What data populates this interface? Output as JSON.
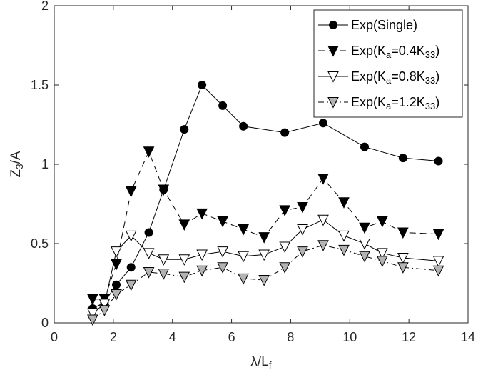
{
  "chart_data": {
    "type": "line",
    "title": "",
    "xlabel": {
      "base": "λ/L",
      "sub": "f"
    },
    "ylabel": {
      "parts": [
        {
          "t": "Z"
        },
        {
          "t": "3",
          "sub": true
        },
        {
          "t": "/A"
        }
      ]
    },
    "xlim": [
      0,
      14
    ],
    "ylim": [
      0,
      2
    ],
    "xticks": [
      0,
      2,
      4,
      6,
      8,
      10,
      12,
      14
    ],
    "xtick_labels": [
      "0",
      "2",
      "4",
      "6",
      "8",
      "10",
      "12",
      "14"
    ],
    "yticks": [
      0,
      0.5,
      1,
      1.5,
      2
    ],
    "ytick_labels": [
      "0",
      "0.5",
      "1",
      "1.5",
      "2"
    ],
    "grid": false,
    "legend_position": "top-right",
    "series": [
      {
        "name": "Exp(Single)",
        "legend_parts": [
          {
            "t": "Exp(Single)"
          }
        ],
        "marker": "circle",
        "fill": "#000000",
        "line": "solid",
        "x": [
          1.3,
          1.7,
          2.1,
          2.6,
          3.2,
          3.7,
          4.4,
          5.0,
          5.7,
          6.4,
          7.8,
          9.1,
          10.5,
          11.8,
          13.0
        ],
        "y": [
          0.09,
          0.13,
          0.24,
          0.35,
          0.57,
          0.84,
          1.22,
          1.5,
          1.37,
          1.24,
          1.2,
          1.26,
          1.11,
          1.04,
          1.02
        ]
      },
      {
        "name": "Exp(Ka=0.4K33)",
        "legend_parts": [
          {
            "t": "Exp(K"
          },
          {
            "t": "a",
            "sub": true
          },
          {
            "t": "=0.4K"
          },
          {
            "t": "33",
            "sub": true
          },
          {
            "t": ")"
          }
        ],
        "marker": "triangle-down",
        "fill": "#000000",
        "line": "dashed",
        "x": [
          1.3,
          1.7,
          2.1,
          2.6,
          3.2,
          3.7,
          4.4,
          5.0,
          5.7,
          6.4,
          7.1,
          7.8,
          8.4,
          9.1,
          9.8,
          10.5,
          11.1,
          11.8,
          13.0
        ],
        "y": [
          0.15,
          0.15,
          0.37,
          0.83,
          1.08,
          0.84,
          0.62,
          0.69,
          0.64,
          0.59,
          0.54,
          0.71,
          0.73,
          0.91,
          0.76,
          0.6,
          0.64,
          0.57,
          0.56
        ]
      },
      {
        "name": "Exp(Ka=0.8K33)",
        "legend_parts": [
          {
            "t": "Exp(K"
          },
          {
            "t": "a",
            "sub": true
          },
          {
            "t": "=0.8K"
          },
          {
            "t": "33",
            "sub": true
          },
          {
            "t": ")"
          }
        ],
        "marker": "triangle-down",
        "fill": "#ffffff",
        "line": "solid",
        "x": [
          1.3,
          1.7,
          2.1,
          2.6,
          3.2,
          3.7,
          4.4,
          5.0,
          5.7,
          6.4,
          7.1,
          7.8,
          8.4,
          9.1,
          9.8,
          10.5,
          11.1,
          11.8,
          13.0
        ],
        "y": [
          0.06,
          0.12,
          0.45,
          0.55,
          0.44,
          0.4,
          0.4,
          0.43,
          0.45,
          0.42,
          0.43,
          0.48,
          0.59,
          0.65,
          0.55,
          0.5,
          0.44,
          0.41,
          0.39
        ]
      },
      {
        "name": "Exp(Ka=1.2K33)",
        "legend_parts": [
          {
            "t": "Exp(K"
          },
          {
            "t": "a",
            "sub": true
          },
          {
            "t": "=1.2K"
          },
          {
            "t": "33",
            "sub": true
          },
          {
            "t": ")"
          }
        ],
        "marker": "triangle-down",
        "fill": "#b3b3b3",
        "line": "dashdot",
        "x": [
          1.3,
          1.7,
          2.1,
          2.6,
          3.2,
          3.7,
          4.4,
          5.0,
          5.7,
          6.4,
          7.1,
          7.8,
          8.4,
          9.1,
          9.8,
          10.5,
          11.1,
          11.8,
          13.0
        ],
        "y": [
          0.02,
          0.08,
          0.18,
          0.24,
          0.32,
          0.31,
          0.29,
          0.33,
          0.35,
          0.28,
          0.27,
          0.35,
          0.45,
          0.49,
          0.46,
          0.42,
          0.39,
          0.35,
          0.33
        ]
      }
    ]
  }
}
